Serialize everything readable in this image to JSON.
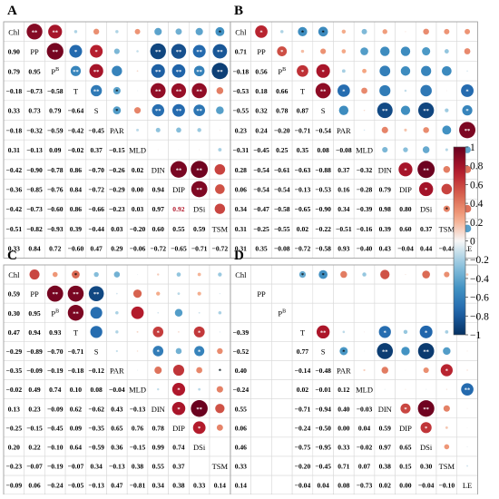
{
  "panel_letters": [
    "A",
    "B",
    "C",
    "D"
  ],
  "variables": [
    "Chl",
    "PP",
    "P^B",
    "T",
    "S",
    "PAR",
    "MLD",
    "DIN",
    "DIP",
    "DSi",
    "TSM",
    "LE"
  ],
  "colorbar_ticks": [
    "1",
    "0.8",
    "0.6",
    "0.4",
    "0.2",
    "0",
    "−0.2",
    "−0.4",
    "−0.6",
    "−0.8",
    "−1"
  ],
  "colors": {
    "positive": "#67001f",
    "negative": "#053061",
    "neutral": "#f7f7f7",
    "highlight_text": "#b2182b"
  },
  "chart_data": [
    {
      "type": "heatmap",
      "panel": "A",
      "variables": [
        "Chl",
        "PP",
        "P^B",
        "T",
        "S",
        "PAR",
        "MLD",
        "DIN",
        "DIP",
        "DSi",
        "TSM",
        "LE"
      ],
      "lower_values": [
        [],
        [
          0.9
        ],
        [
          0.79,
          0.95
        ],
        [
          -0.18,
          -0.73,
          -0.58
        ],
        [
          0.33,
          0.73,
          0.79,
          -0.64
        ],
        [
          -0.18,
          -0.32,
          -0.59,
          -0.42,
          -0.45
        ],
        [
          0.31,
          -0.13,
          0.09,
          -0.02,
          0.37,
          -0.15
        ],
        [
          -0.42,
          -0.9,
          -0.78,
          0.86,
          -0.7,
          -0.26,
          0.02
        ],
        [
          -0.36,
          -0.85,
          -0.76,
          0.84,
          -0.72,
          -0.29,
          0.0,
          0.94
        ],
        [
          -0.42,
          -0.73,
          -0.6,
          0.86,
          -0.66,
          -0.23,
          0.03,
          0.97,
          0.92
        ],
        [
          -0.51,
          -0.82,
          -0.93,
          0.39,
          -0.44,
          0.03,
          -0.2,
          0.6,
          0.55,
          0.59
        ],
        [
          0.33,
          0.84,
          0.72,
          -0.6,
          0.47,
          0.29,
          -0.06,
          -0.72,
          -0.65,
          -0.71,
          -0.72
        ]
      ],
      "highlighted": [
        [
          9,
          8
        ]
      ],
      "sig_1": [
        [
          0,
          1
        ],
        [
          0,
          2
        ],
        [
          1,
          2
        ],
        [
          2,
          3
        ],
        [
          2,
          4
        ],
        [
          2,
          10
        ],
        [
          3,
          4
        ],
        [
          3,
          7
        ],
        [
          3,
          8
        ],
        [
          3,
          9
        ],
        [
          3,
          11
        ],
        [
          4,
          7
        ],
        [
          4,
          8
        ],
        [
          4,
          9
        ],
        [
          7,
          8
        ],
        [
          7,
          9
        ],
        [
          7,
          11
        ],
        [
          8,
          9
        ],
        [
          8,
          11
        ],
        [
          9,
          11
        ],
        [
          1,
          7
        ],
        [
          1,
          8
        ],
        [
          1,
          9
        ],
        [
          1,
          10
        ],
        [
          2,
          7
        ],
        [
          2,
          8
        ],
        [
          2,
          9
        ]
      ],
      "sig_2": [
        [
          1,
          3
        ],
        [
          1,
          4
        ],
        [
          1,
          11
        ],
        [
          2,
          11
        ],
        [
          3,
          5
        ],
        [
          4,
          5
        ],
        [
          4,
          11
        ],
        [
          0,
          10
        ]
      ]
    },
    {
      "type": "heatmap",
      "panel": "B",
      "variables": [
        "Chl",
        "PP",
        "P^B",
        "T",
        "S",
        "PAR",
        "MLD",
        "DIN",
        "DIP",
        "DSi",
        "TSM",
        "LE"
      ],
      "lower_values": [
        [],
        [
          0.71
        ],
        [
          -0.18,
          0.56
        ],
        [
          -0.53,
          0.18,
          0.66
        ],
        [
          -0.55,
          0.32,
          0.78,
          0.87
        ],
        [
          0.23,
          0.24,
          -0.2,
          -0.71,
          -0.54
        ],
        [
          -0.31,
          -0.45,
          0.25,
          0.35,
          0.08,
          -0.08
        ],
        [
          0.28,
          -0.54,
          -0.61,
          -0.63,
          -0.88,
          0.37,
          -0.32
        ],
        [
          0.06,
          -0.54,
          -0.54,
          -0.13,
          -0.53,
          0.16,
          -0.28,
          0.79
        ],
        [
          0.34,
          -0.47,
          -0.58,
          -0.65,
          -0.9,
          0.34,
          -0.39,
          0.98,
          0.8
        ],
        [
          0.31,
          -0.25,
          -0.55,
          0.02,
          -0.22,
          -0.51,
          -0.16,
          0.39,
          0.6,
          0.37
        ],
        [
          0.31,
          0.35,
          -0.08,
          -0.72,
          -0.58,
          0.93,
          -0.4,
          0.43,
          -0.04,
          0.44,
          -0.44
        ]
      ],
      "highlighted": [],
      "sig_1": [
        [
          3,
          4
        ],
        [
          4,
          7
        ],
        [
          4,
          9
        ],
        [
          7,
          9
        ],
        [
          5,
          11
        ]
      ],
      "sig_2": [
        [
          0,
          1
        ],
        [
          0,
          3
        ],
        [
          0,
          4
        ],
        [
          1,
          2
        ],
        [
          2,
          3
        ],
        [
          2,
          4
        ],
        [
          3,
          11
        ],
        [
          7,
          8
        ],
        [
          8,
          9
        ],
        [
          9,
          10
        ],
        [
          3,
          5
        ],
        [
          4,
          11
        ]
      ]
    },
    {
      "type": "heatmap",
      "panel": "C",
      "variables": [
        "Chl",
        "PP",
        "P^B",
        "T",
        "S",
        "PAR",
        "MLD",
        "DIN",
        "DIP",
        "DSi",
        "TSM",
        "LE"
      ],
      "lower_values": [
        [],
        [
          0.59
        ],
        [
          0.3,
          0.95
        ],
        [
          0.47,
          0.94,
          0.93
        ],
        [
          -0.29,
          -0.89,
          -0.7,
          -0.71
        ],
        [
          -0.35,
          -0.09,
          -0.19,
          -0.18,
          -0.12
        ],
        [
          -0.02,
          0.49,
          0.74,
          0.1,
          0.08,
          -0.04
        ],
        [
          0.13,
          0.23,
          -0.09,
          0.62,
          -0.62,
          0.43,
          -0.13
        ],
        [
          -0.25,
          -0.15,
          -0.45,
          0.09,
          -0.35,
          0.65,
          0.76,
          0.78
        ],
        [
          0.2,
          0.22,
          -0.1,
          0.64,
          -0.59,
          0.36,
          -0.15,
          0.99,
          0.74
        ],
        [
          -0.23,
          -0.07,
          -0.19,
          -0.07,
          0.34,
          -0.13,
          0.38,
          0.55,
          0.37
        ],
        [
          -0.09,
          0.06,
          -0.24,
          -0.05,
          -0.13,
          0.47,
          -0.81,
          0.34,
          0.38,
          0.33,
          0.14
        ]
      ],
      "highlighted": [],
      "sig_1": [
        [
          1,
          2
        ],
        [
          1,
          3
        ],
        [
          2,
          3
        ],
        [
          1,
          4
        ],
        [
          7,
          9
        ],
        [
          6,
          11
        ]
      ],
      "sig_2": [
        [
          0,
          3
        ],
        [
          4,
          7
        ],
        [
          4,
          9
        ],
        [
          6,
          8
        ],
        [
          7,
          8
        ],
        [
          3,
          7
        ],
        [
          3,
          9
        ],
        [
          8,
          9
        ],
        [
          5,
          10
        ]
      ]
    },
    {
      "type": "heatmap",
      "panel": "D",
      "variables": [
        "Chl",
        "PP",
        "P^B",
        "T",
        "S",
        "PAR",
        "MLD",
        "DIN",
        "DIP",
        "DSi",
        "TSM",
        "LE"
      ],
      "lower_values": [
        [],
        [
          null
        ],
        [
          null,
          null
        ],
        [
          -0.39,
          null,
          null
        ],
        [
          -0.52,
          null,
          null,
          0.77
        ],
        [
          0.4,
          null,
          null,
          -0.14,
          -0.48
        ],
        [
          -0.24,
          null,
          null,
          0.02,
          -0.01,
          0.12
        ],
        [
          0.55,
          null,
          null,
          -0.71,
          -0.94,
          0.4,
          -0.03
        ],
        [
          0.06,
          null,
          null,
          -0.24,
          -0.5,
          0.0,
          0.04,
          0.59
        ],
        [
          0.46,
          null,
          null,
          -0.75,
          -0.95,
          0.33,
          -0.02,
          0.97,
          0.65
        ],
        [
          0.33,
          null,
          null,
          -0.2,
          -0.45,
          0.71,
          0.07,
          0.38,
          0.15,
          0.3
        ],
        [
          0.14,
          null,
          null,
          -0.04,
          0.04,
          0.08,
          -0.73,
          0.02,
          0.0,
          -0.04,
          -0.1
        ]
      ],
      "highlighted": [],
      "sig_1": [
        [
          3,
          4
        ],
        [
          4,
          7
        ],
        [
          4,
          9
        ],
        [
          7,
          9
        ],
        [
          6,
          11
        ]
      ],
      "sig_2": [
        [
          0,
          3
        ],
        [
          0,
          4
        ],
        [
          3,
          7
        ],
        [
          3,
          9
        ],
        [
          4,
          5
        ],
        [
          5,
          10
        ],
        [
          7,
          8
        ],
        [
          8,
          9
        ]
      ]
    }
  ]
}
